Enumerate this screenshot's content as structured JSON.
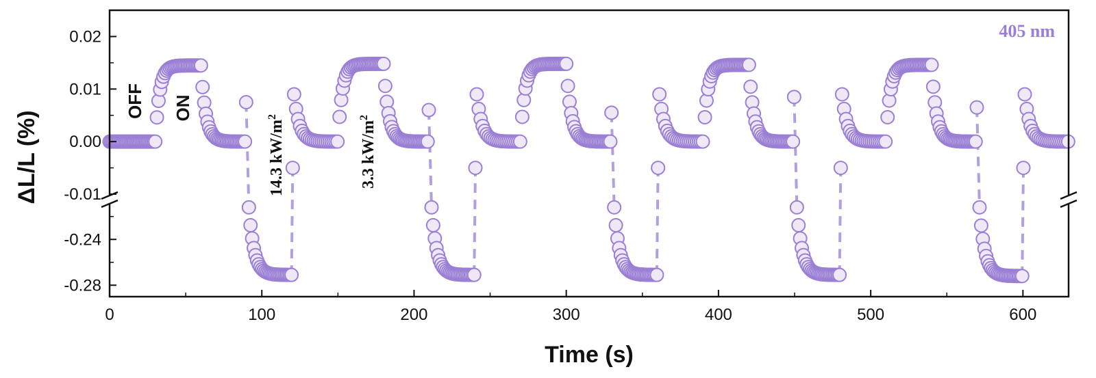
{
  "chart_data": {
    "type": "scatter",
    "xlabel": "Time (s)",
    "ylabel": "ΔL/L (%)",
    "xlim": [
      0,
      630
    ],
    "ylim_upper": [
      -0.01,
      0.025
    ],
    "ylim_lower": [
      -0.29,
      -0.21
    ],
    "axis_break": "y",
    "x_ticks": [
      0,
      100,
      200,
      300,
      400,
      500,
      600
    ],
    "x_tick_labels": [
      "0",
      "100",
      "200",
      "300",
      "400",
      "500",
      "600"
    ],
    "y_ticks_upper": [
      0.02,
      0.01,
      0.0,
      -0.01
    ],
    "y_tick_labels_upper": [
      "0.02",
      "0.01",
      "0.00",
      "-0.01"
    ],
    "y_ticks_lower": [
      -0.24,
      -0.28
    ],
    "y_tick_labels_lower": [
      "-0.24",
      "-0.28"
    ],
    "legend": "405 nm",
    "legend_position": "top-right",
    "marker_color": "#9b7fd4",
    "marker_fill": "#eee8f7",
    "annotations": {
      "off": "OFF",
      "on": "ON",
      "power_high_value": "14.3 kW/m",
      "power_low_value": "3.3 kW/m",
      "power_exp": "2"
    },
    "cycles": [
      {
        "on_start": 30,
        "on_end": 60,
        "neg_start": 90,
        "neg_end": 120,
        "rec_end": 150,
        "peak": 0.0145,
        "neg_min": -0.271,
        "spike": 0.0075
      },
      {
        "on_start": 150,
        "on_end": 180,
        "neg_start": 210,
        "neg_end": 240,
        "rec_end": 270,
        "peak": 0.0148,
        "neg_min": -0.271,
        "spike": 0.006
      },
      {
        "on_start": 270,
        "on_end": 300,
        "neg_start": 330,
        "neg_end": 360,
        "rec_end": 390,
        "peak": 0.0148,
        "neg_min": -0.271,
        "spike": 0.0055
      },
      {
        "on_start": 390,
        "on_end": 420,
        "neg_start": 450,
        "neg_end": 480,
        "rec_end": 510,
        "peak": 0.0146,
        "neg_min": -0.271,
        "spike": 0.0085
      },
      {
        "on_start": 510,
        "on_end": 540,
        "neg_start": 570,
        "neg_end": 600,
        "rec_end": 630,
        "peak": 0.0146,
        "neg_min": -0.272,
        "spike": 0.0065
      }
    ]
  }
}
